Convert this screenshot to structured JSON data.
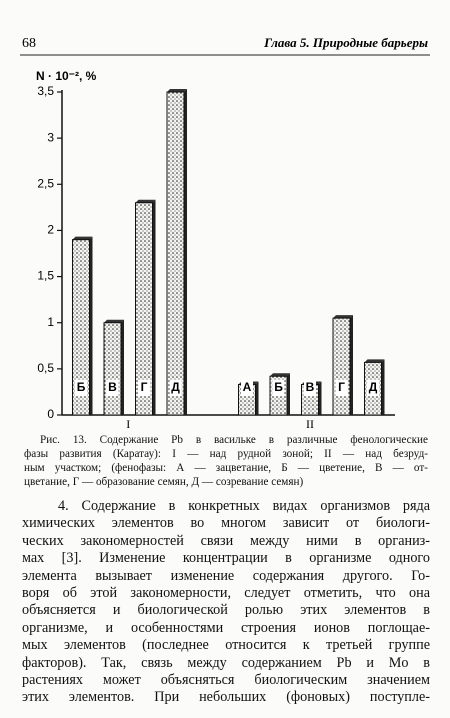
{
  "header": {
    "page_number": "68",
    "running_title": "Глава 5. Природные барьеры"
  },
  "chart_data": {
    "type": "bar",
    "y_label": "N · 10⁻², %",
    "ylim": [
      0,
      3.5
    ],
    "yticks": [
      0,
      {
        "value": 0.5,
        "label": "0,5"
      },
      1,
      {
        "value": 1.5,
        "label": "1,5"
      },
      2,
      {
        "value": 2.5,
        "label": "2,5"
      },
      3,
      {
        "value": 3.5,
        "label": "3,5"
      }
    ],
    "groups": [
      {
        "label": "I",
        "categories": [
          "Б",
          "В",
          "Г",
          "Д"
        ],
        "values": [
          1.9,
          1.0,
          2.3,
          3.5
        ]
      },
      {
        "label": "II",
        "categories": [
          "А",
          "Б",
          "В",
          "Г",
          "Д"
        ],
        "values": [
          0.33,
          0.42,
          0.33,
          1.05,
          0.57
        ]
      }
    ]
  },
  "caption": {
    "lines": [
      "Рис. 13. Содержание Pb в васильке в различные фенологические",
      "фазы развития (Каратау): I — над рудной зоной; II — над безруд-",
      "ным участком; (фенофазы: А — зацветание, Б — цветение, В — от-",
      "цветание, Г — образование семян, Д — созревание семян)"
    ]
  },
  "body": {
    "lines": [
      "4. Содержание в конкретных видах организмов ряда",
      "химических элементов во многом зависит от биологи-",
      "ческих закономерностей связи между ними в организ-",
      "мах [3]. Изменение концентрации в организме одного",
      "элемента вызывает изменение содержания другого. Го-",
      "воря об этой закономерности, следует отметить, что она",
      "объясняется и биологической ролью этих элементов в",
      "организме, и особенностями строения ионов поглощае-",
      "мых элементов (последнее относится к третьей группе",
      "факторов). Так, связь между содержанием Pb и Mo в",
      "растениях может объясняться биологическим значением",
      "этих элементов. При небольших (фоновых) поступле-"
    ]
  }
}
